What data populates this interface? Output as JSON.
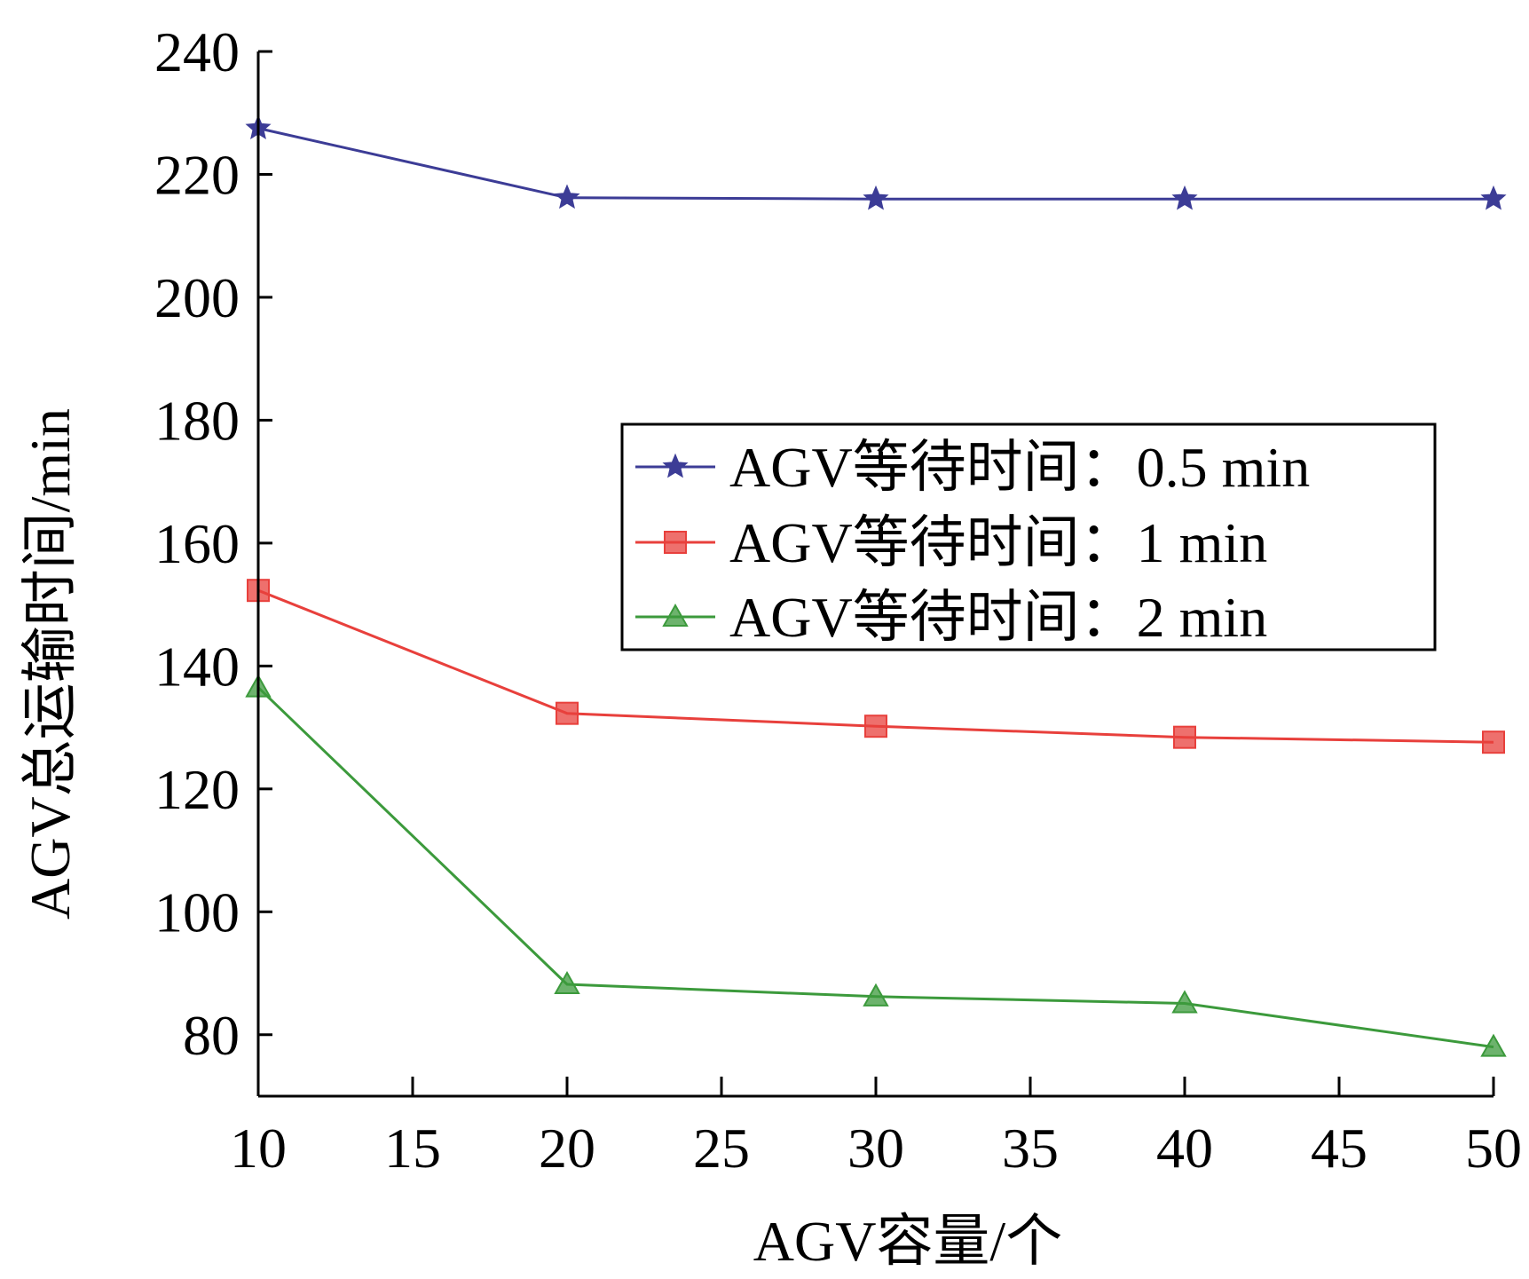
{
  "chart_data": {
    "type": "line",
    "xlabel": "AGV容量/个",
    "ylabel": "AGV总运输时间/min",
    "x": [
      10,
      20,
      30,
      40,
      50
    ],
    "xlim": [
      10,
      50
    ],
    "ylim": [
      70,
      240
    ],
    "xticks": [
      "10",
      "15",
      "20",
      "25",
      "30",
      "35",
      "40",
      "45",
      "50"
    ],
    "yticks": [
      "80",
      "100",
      "120",
      "140",
      "160",
      "180",
      "200",
      "220",
      "240"
    ],
    "legend_position": "center-right",
    "grid": false,
    "series": [
      {
        "name": "AGV等待时间：0.5 min",
        "values": [
          227.5,
          216.2,
          216.0,
          216.0,
          216.0
        ],
        "color": "#3c3c96",
        "marker": "star"
      },
      {
        "name": "AGV等待时间：1 min",
        "values": [
          152.3,
          132.3,
          130.2,
          128.4,
          127.6
        ],
        "color": "#e8403c",
        "marker": "square"
      },
      {
        "name": "AGV等待时间：2 min",
        "values": [
          136.5,
          88.2,
          86.2,
          85.1,
          78.0
        ],
        "color": "#3c9a3c",
        "marker": "triangle"
      }
    ]
  }
}
